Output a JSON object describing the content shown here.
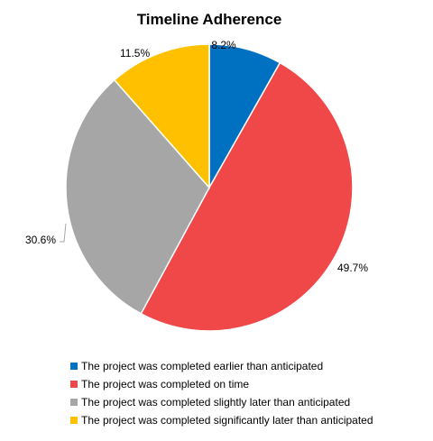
{
  "chart_data": {
    "type": "pie",
    "title": "Timeline Adherence",
    "categories": [
      "The project was completed earlier than anticipated",
      "The project was completed on time",
      "The project was completed slightly later than anticipated",
      "The project was completed significantly later than anticipated"
    ],
    "values": [
      8.2,
      49.7,
      30.6,
      11.5
    ],
    "data_labels": [
      "8.2%",
      "49.7%",
      "30.6%",
      "11.5%"
    ],
    "colors": [
      "#0070C0",
      "#F04848",
      "#A6A6A6",
      "#FFC000"
    ],
    "legend_position": "bottom",
    "start_angle": "12 o'clock, clockwise"
  }
}
